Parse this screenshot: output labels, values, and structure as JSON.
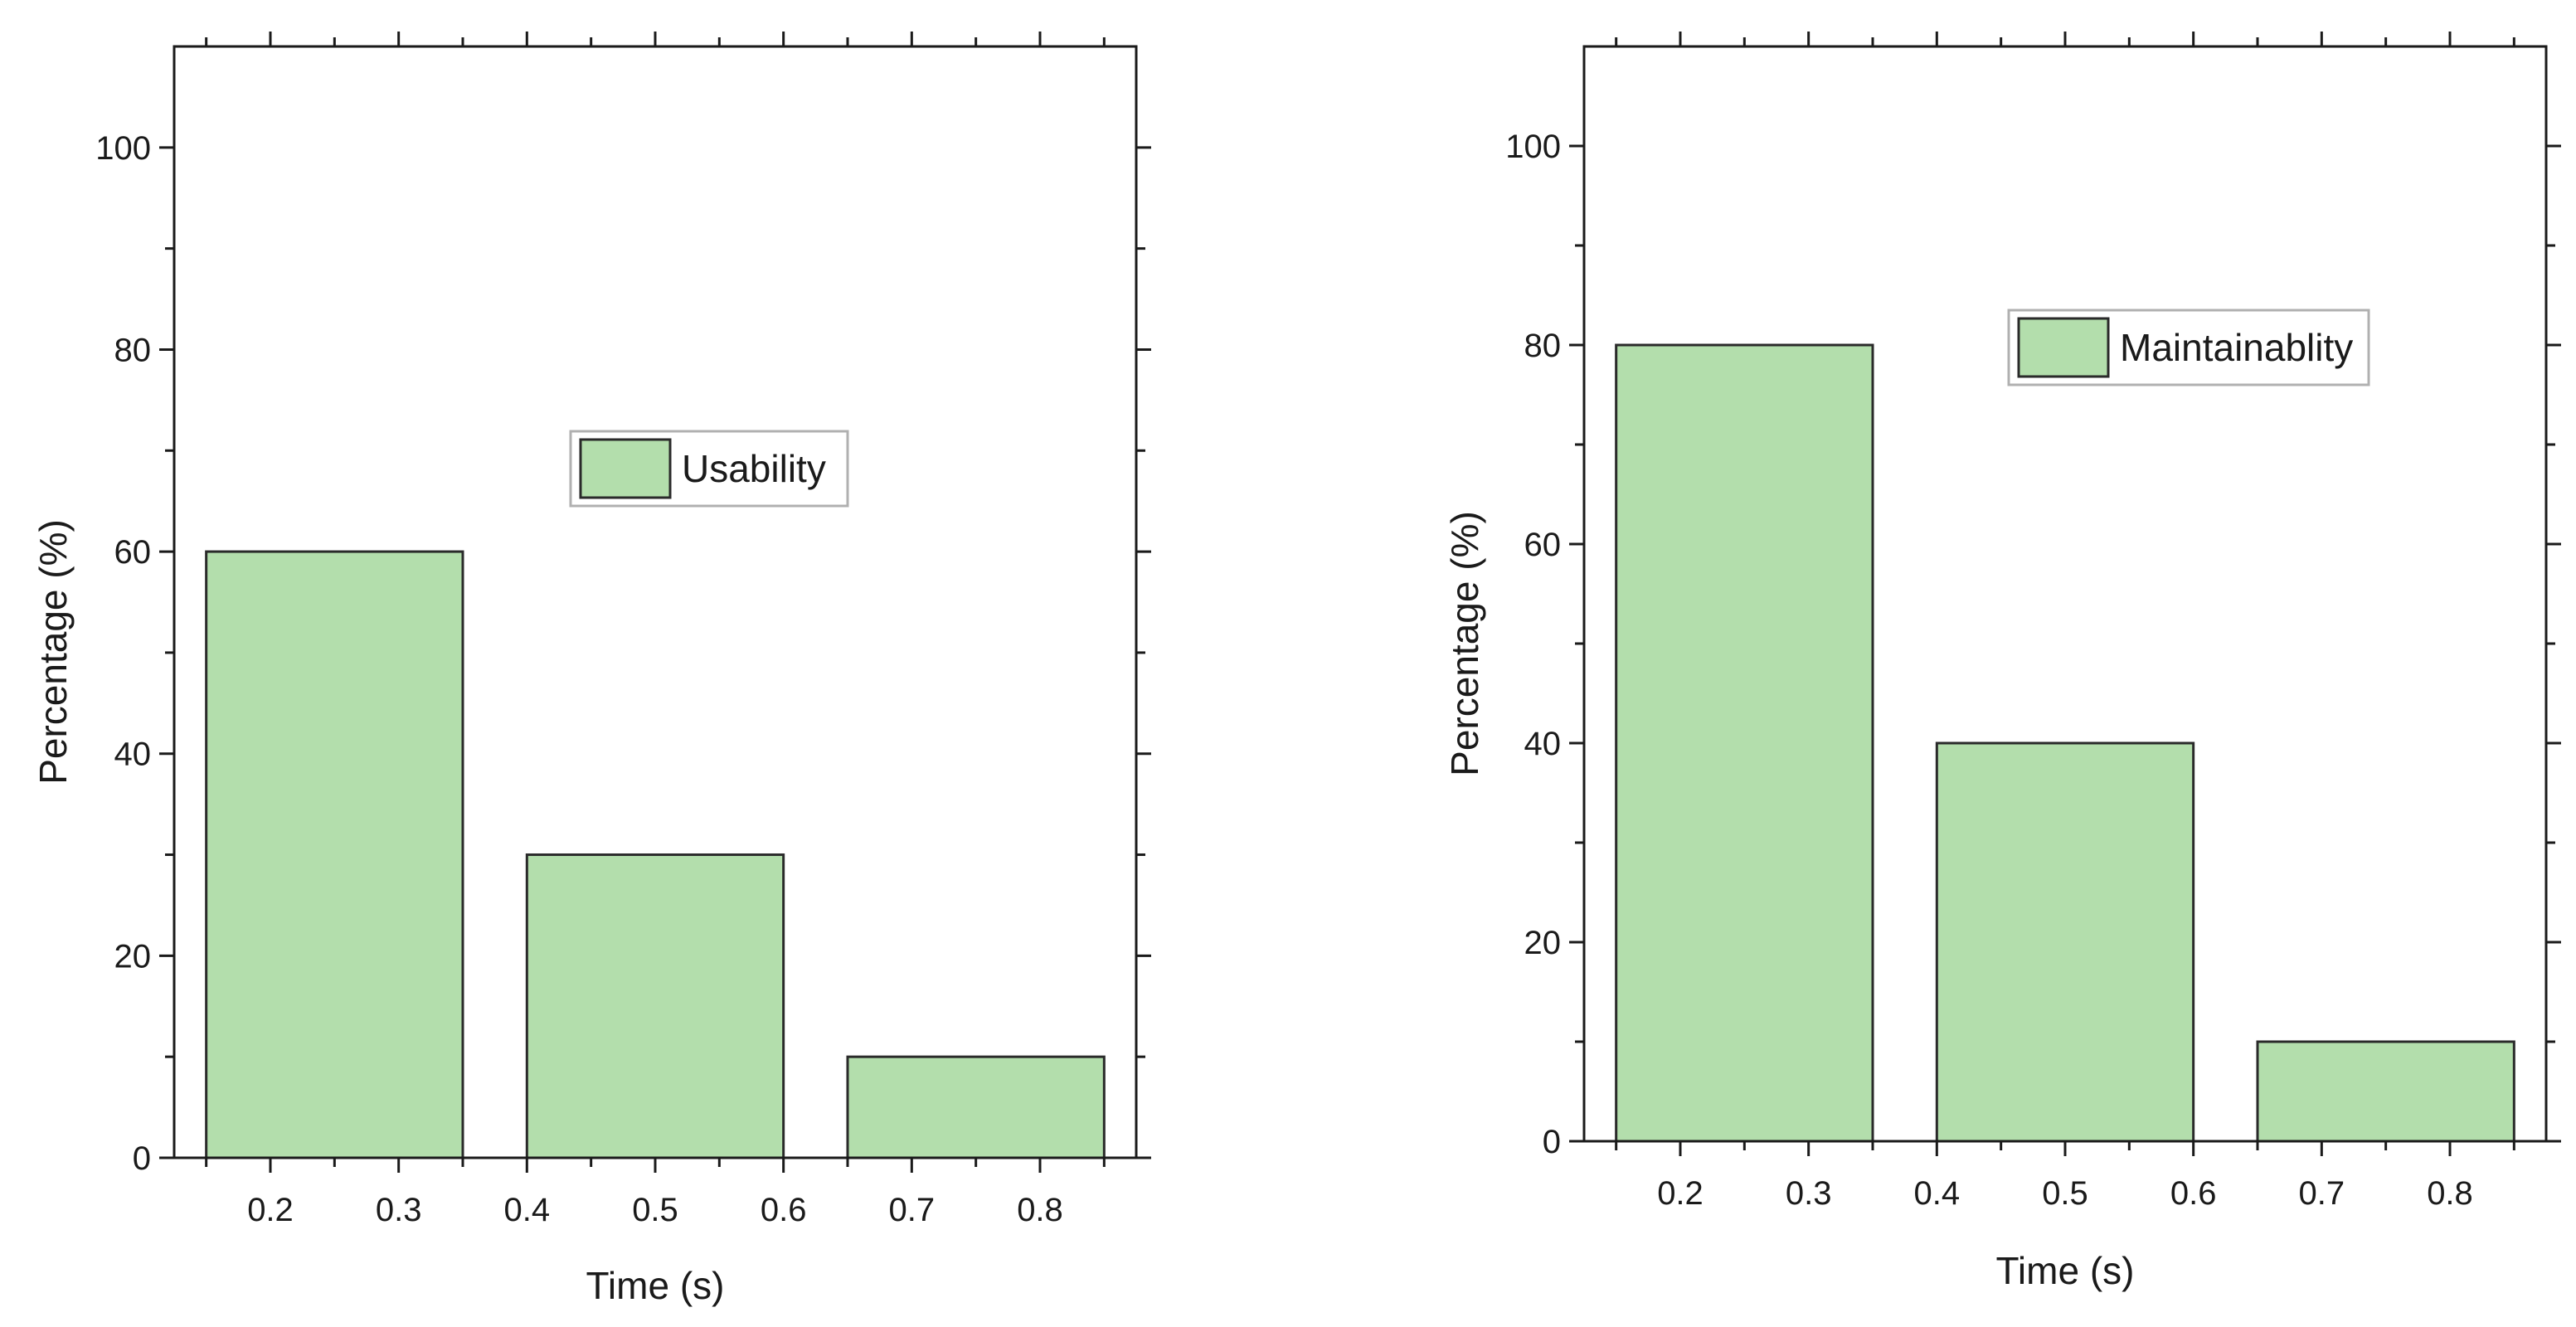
{
  "chart_data": [
    {
      "type": "bar",
      "x": [
        0.25,
        0.5,
        0.75
      ],
      "bar_ranges": [
        [
          0.15,
          0.35
        ],
        [
          0.4,
          0.6
        ],
        [
          0.65,
          0.85
        ]
      ],
      "values": [
        60,
        30,
        10
      ],
      "series": [
        {
          "name": "Usability",
          "values": [
            60,
            30,
            10
          ]
        }
      ],
      "xlabel": "Time (s)",
      "ylabel": "Percentage (%)",
      "xticks": [
        0.2,
        0.3,
        0.4,
        0.5,
        0.6,
        0.7,
        0.8
      ],
      "yticks": [
        0,
        20,
        40,
        60,
        80,
        100
      ],
      "xlim": [
        0.125,
        0.875
      ],
      "ylim": [
        0,
        110
      ],
      "legend": "center-right",
      "grid": false,
      "bar_color": "#b3deac"
    },
    {
      "type": "bar",
      "x": [
        0.25,
        0.5,
        0.75
      ],
      "bar_ranges": [
        [
          0.15,
          0.35
        ],
        [
          0.4,
          0.6
        ],
        [
          0.65,
          0.85
        ]
      ],
      "values": [
        80,
        40,
        10
      ],
      "series": [
        {
          "name": "Maintainablity",
          "values": [
            80,
            40,
            10
          ]
        }
      ],
      "xlabel": "Time (s)",
      "ylabel": "Percentage (%)",
      "xticks": [
        0.2,
        0.3,
        0.4,
        0.5,
        0.6,
        0.7,
        0.8
      ],
      "yticks": [
        0,
        20,
        40,
        60,
        80,
        100
      ],
      "xlim": [
        0.125,
        0.875
      ],
      "ylim": [
        0,
        110
      ],
      "legend": "top-right",
      "grid": false,
      "bar_color": "#b3deac"
    }
  ]
}
